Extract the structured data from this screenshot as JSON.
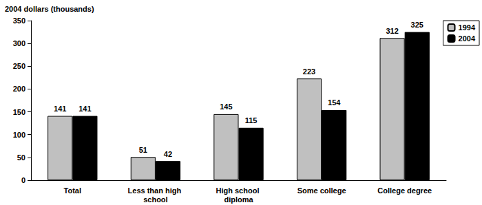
{
  "chart_data": {
    "type": "bar",
    "ylabel": "2004 dollars (thousands)",
    "categories": [
      "Total",
      "Less than high school",
      "High school diploma",
      "Some college",
      "College degree"
    ],
    "series": [
      {
        "name": "1994",
        "color": "#c0c0c0",
        "values": [
          141,
          51,
          145,
          223,
          312
        ]
      },
      {
        "name": "2004",
        "color": "#000000",
        "values": [
          141,
          42,
          115,
          154,
          325
        ]
      }
    ],
    "ylim": [
      0,
      350
    ],
    "yticks": [
      0,
      50,
      100,
      150,
      200,
      250,
      300,
      350
    ],
    "grid": false,
    "legend": "top-right",
    "data_labels": true
  }
}
